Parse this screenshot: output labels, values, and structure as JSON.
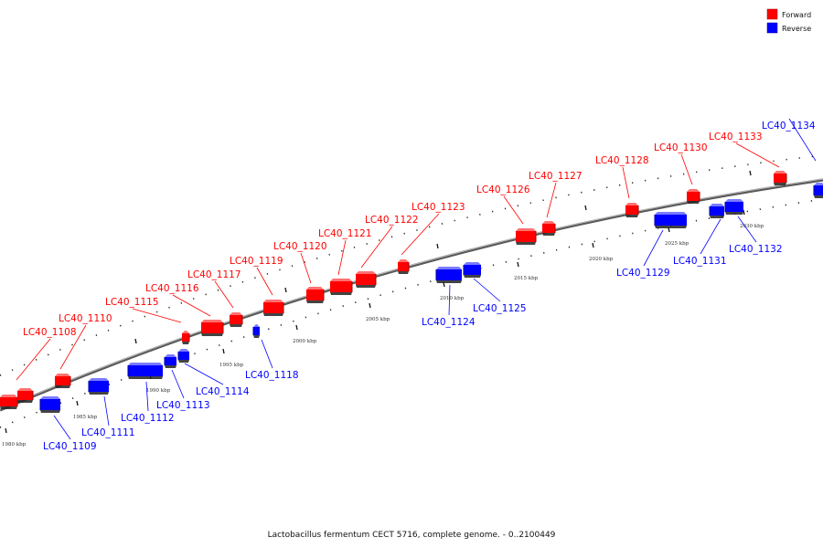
{
  "caption": "Lactobacillus fermentum CECT 5716, complete genome. - 0..2100449",
  "legend": [
    {
      "label": "Forward",
      "color": "#ff0000"
    },
    {
      "label": "Reverse",
      "color": "#0000ff"
    }
  ],
  "colors": {
    "forward": "#ff0000",
    "reverse": "#0000ff",
    "backbone": "#888888"
  },
  "ticks": [
    "1980 kbp",
    "1985 kbp",
    "1990 kbp",
    "1995 kbp",
    "2000 kbp",
    "2005 kbp",
    "2010 kbp",
    "2015 kbp",
    "2020 kbp",
    "2025 kbp",
    "2030 kbp"
  ],
  "genes": [
    {
      "label": "LC40_1108",
      "strand": "forward"
    },
    {
      "label": "LC40_1109",
      "strand": "reverse"
    },
    {
      "label": "LC40_1110",
      "strand": "forward"
    },
    {
      "label": "LC40_1111",
      "strand": "reverse"
    },
    {
      "label": "LC40_1112",
      "strand": "reverse"
    },
    {
      "label": "LC40_1113",
      "strand": "reverse"
    },
    {
      "label": "LC40_1114",
      "strand": "reverse"
    },
    {
      "label": "LC40_1115",
      "strand": "forward"
    },
    {
      "label": "LC40_1116",
      "strand": "forward"
    },
    {
      "label": "LC40_1117",
      "strand": "forward"
    },
    {
      "label": "LC40_1118",
      "strand": "reverse"
    },
    {
      "label": "LC40_1119",
      "strand": "forward"
    },
    {
      "label": "LC40_1120",
      "strand": "forward"
    },
    {
      "label": "LC40_1121",
      "strand": "forward"
    },
    {
      "label": "LC40_1122",
      "strand": "forward"
    },
    {
      "label": "LC40_1123",
      "strand": "forward"
    },
    {
      "label": "LC40_1124",
      "strand": "reverse"
    },
    {
      "label": "LC40_1125",
      "strand": "reverse"
    },
    {
      "label": "LC40_1126",
      "strand": "forward"
    },
    {
      "label": "LC40_1127",
      "strand": "forward"
    },
    {
      "label": "LC40_1128",
      "strand": "forward"
    },
    {
      "label": "LC40_1129",
      "strand": "reverse"
    },
    {
      "label": "LC40_1130",
      "strand": "forward"
    },
    {
      "label": "LC40_1131",
      "strand": "reverse"
    },
    {
      "label": "LC40_1132",
      "strand": "reverse"
    },
    {
      "label": "LC40_1133",
      "strand": "forward"
    },
    {
      "label": "LC40_1134",
      "strand": "reverse"
    }
  ]
}
